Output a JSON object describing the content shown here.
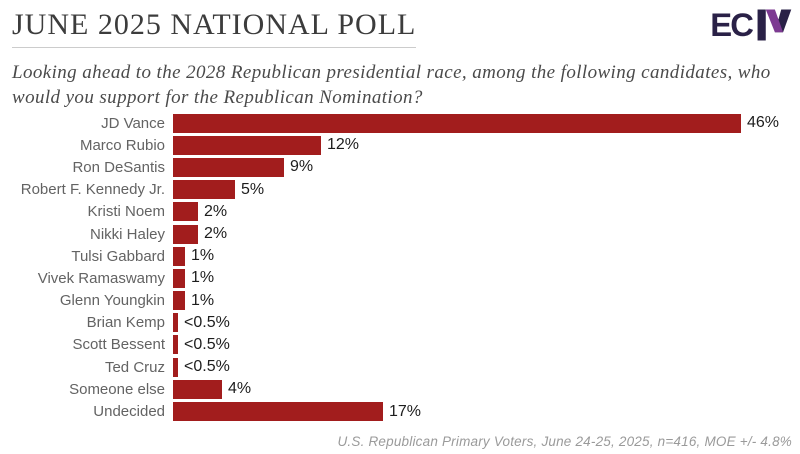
{
  "header": {
    "title": "JUNE 2025 NATIONAL POLL",
    "logo_text": "EC",
    "logo_navy": "#2a2147",
    "logo_purple": "#7d3a92"
  },
  "subtitle": {
    "line1": "Looking ahead to the 2028 Republican presidential race, among the following candidates, who",
    "line2": "would you support for the Republican Nomination?"
  },
  "chart_data": {
    "type": "bar",
    "orientation": "horizontal",
    "title": "JUNE 2025 NATIONAL POLL",
    "categories": [
      "JD Vance",
      "Marco Rubio",
      "Ron DeSantis",
      "Robert F. Kennedy Jr.",
      "Kristi Noem",
      "Nikki Haley",
      "Tulsi Gabbard",
      "Vivek Ramaswamy",
      "Glenn Youngkin",
      "Brian Kemp",
      "Scott Bessent",
      "Ted Cruz",
      "Someone else",
      "Undecided"
    ],
    "values": [
      46,
      12,
      9,
      5,
      2,
      2,
      1,
      1,
      1,
      0.4,
      0.4,
      0.4,
      4,
      17
    ],
    "value_labels": [
      "46%",
      "12%",
      "9%",
      "5%",
      "2%",
      "2%",
      "1%",
      "1%",
      "1%",
      "<0.5%",
      "<0.5%",
      "<0.5%",
      "4%",
      "17%"
    ],
    "bar_color": "#a21d1d",
    "xlim": [
      0,
      46
    ],
    "grid": false,
    "legend": false,
    "xlabel": "",
    "ylabel": ""
  },
  "footer": {
    "source_note": "U.S. Republican Primary Voters, June 24-25, 2025, n=416, MOE +/- 4.8%"
  }
}
